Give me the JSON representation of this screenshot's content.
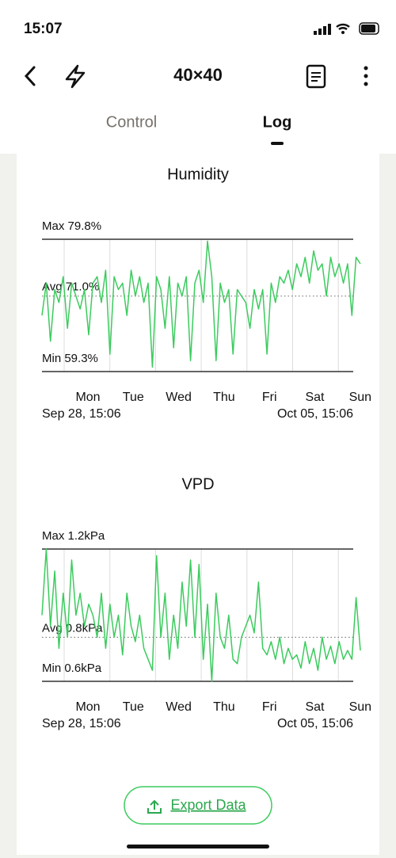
{
  "status_bar": {
    "time": "15:07"
  },
  "header": {
    "title": "40×40"
  },
  "tabs": [
    "Control",
    "Log"
  ],
  "chart_data": [
    {
      "type": "line",
      "title": "Humidity",
      "color": "#3ccb5e",
      "ylim": [
        59.3,
        79.8
      ],
      "yticks": [
        {
          "value": 79.8,
          "label": "Max 79.8%"
        },
        {
          "value": 71.0,
          "label": "Avg 71.0%"
        },
        {
          "value": 59.3,
          "label": "Min 59.3%"
        }
      ],
      "x_labels": [
        "Mon",
        "Tue",
        "Wed",
        "Thu",
        "Fri",
        "Sat",
        "Sun"
      ],
      "range_labels": [
        "Sep 28, 15:06",
        "Oct 05, 15:06"
      ],
      "values": [
        68,
        73,
        64,
        72,
        70,
        74,
        66,
        73,
        71,
        69,
        72,
        65,
        73,
        74,
        70,
        75,
        62,
        74,
        72,
        73,
        68,
        75,
        71,
        74,
        70,
        73,
        60,
        74,
        72,
        66,
        74,
        63,
        73,
        71,
        74,
        61,
        73,
        75,
        70,
        79.5,
        74,
        61,
        73,
        70,
        72,
        62,
        72,
        71,
        70,
        66,
        72,
        69,
        72,
        62,
        73,
        70,
        74,
        73,
        75,
        72,
        76,
        74,
        77,
        73,
        78,
        75,
        76,
        71,
        77,
        74,
        76,
        73,
        76,
        68,
        77,
        76
      ]
    },
    {
      "type": "line",
      "title": "VPD",
      "color": "#3ccb5e",
      "ylim": [
        0.6,
        1.2
      ],
      "yticks": [
        {
          "value": 1.2,
          "label": "Max 1.2kPa"
        },
        {
          "value": 0.8,
          "label": "Avg 0.8kPa"
        },
        {
          "value": 0.6,
          "label": "Min 0.6kPa"
        }
      ],
      "x_labels": [
        "Mon",
        "Tue",
        "Wed",
        "Thu",
        "Fri",
        "Sat",
        "Sun"
      ],
      "range_labels": [
        "Sep 28, 15:06",
        "Oct 05, 15:06"
      ],
      "values": [
        0.9,
        1.2,
        0.85,
        1.1,
        0.75,
        1.0,
        0.8,
        1.15,
        0.9,
        1.0,
        0.85,
        0.95,
        0.9,
        0.8,
        1.0,
        0.75,
        0.95,
        0.8,
        0.9,
        0.72,
        1.0,
        0.85,
        0.78,
        0.9,
        0.75,
        0.7,
        0.65,
        1.17,
        0.8,
        1.0,
        0.7,
        0.9,
        0.75,
        1.05,
        0.85,
        1.15,
        0.8,
        1.13,
        0.7,
        0.95,
        0.6,
        1.0,
        0.8,
        0.75,
        0.9,
        0.7,
        0.68,
        0.8,
        0.85,
        0.9,
        0.82,
        1.05,
        0.75,
        0.72,
        0.78,
        0.7,
        0.8,
        0.68,
        0.75,
        0.7,
        0.72,
        0.66,
        0.78,
        0.68,
        0.75,
        0.65,
        0.8,
        0.7,
        0.76,
        0.68,
        0.78,
        0.7,
        0.74,
        0.7,
        0.98,
        0.74
      ]
    }
  ],
  "export_button": "Export Data"
}
